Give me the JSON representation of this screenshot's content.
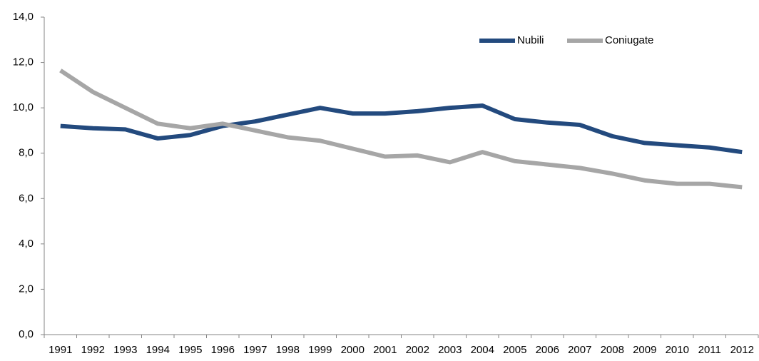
{
  "chart_data": {
    "type": "line",
    "categories": [
      "1991",
      "1992",
      "1993",
      "1994",
      "1995",
      "1996",
      "1997",
      "1998",
      "1999",
      "2000",
      "2001",
      "2002",
      "2003",
      "2004",
      "2005",
      "2006",
      "2007",
      "2008",
      "2009",
      "2010",
      "2011",
      "2012"
    ],
    "series": [
      {
        "name": "Nubili",
        "color": "#234a7e",
        "values": [
          9.2,
          9.1,
          9.05,
          8.65,
          8.8,
          9.2,
          9.4,
          9.7,
          10.0,
          9.75,
          9.75,
          9.85,
          10.0,
          10.1,
          9.5,
          9.35,
          9.25,
          8.75,
          8.45,
          8.35,
          8.25,
          8.05
        ]
      },
      {
        "name": "Coniugate",
        "color": "#a6a6a6",
        "values": [
          11.65,
          10.7,
          10.0,
          9.3,
          9.1,
          9.3,
          9.0,
          8.7,
          8.55,
          8.2,
          7.85,
          7.9,
          7.6,
          8.05,
          7.65,
          7.5,
          7.35,
          7.1,
          6.8,
          6.65,
          6.65,
          6.5
        ]
      }
    ],
    "ylim": [
      0,
      14
    ],
    "yticks": [
      {
        "value": 0,
        "label": "0,0"
      },
      {
        "value": 2,
        "label": "2,0"
      },
      {
        "value": 4,
        "label": "4,0"
      },
      {
        "value": 6,
        "label": "6,0"
      },
      {
        "value": 8,
        "label": "8,0"
      },
      {
        "value": 10,
        "label": "10,0"
      },
      {
        "value": 12,
        "label": "12,0"
      },
      {
        "value": 14,
        "label": "14,0"
      }
    ],
    "grid": false,
    "legend": "top-right"
  }
}
